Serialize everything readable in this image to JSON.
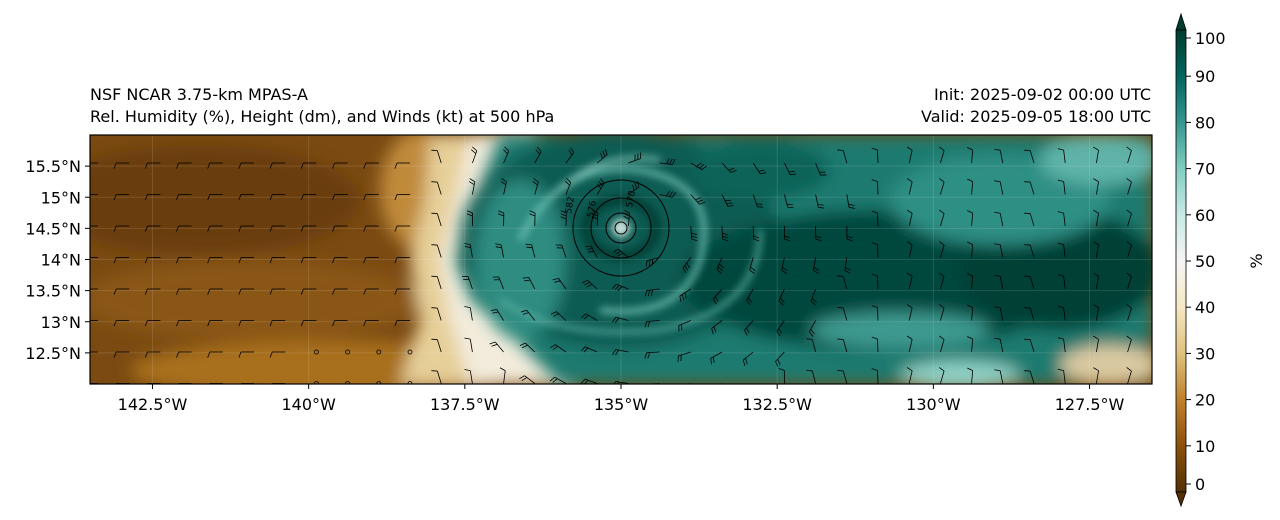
{
  "title": {
    "left_line1": "NSF NCAR 3.75-km MPAS-A",
    "left_line2": "Rel. Humidity (%), Height (dm), and Winds (kt) at 500 hPa",
    "right_line1": "Init: 2025-09-02 00:00 UTC",
    "right_line2": "Valid: 2025-09-05 18:00 UTC"
  },
  "map": {
    "lat_ticks": [
      "15.5°N",
      "15°N",
      "14.5°N",
      "14°N",
      "13.5°N",
      "13°N",
      "12.5°N"
    ],
    "lon_ticks": [
      "142.5°W",
      "140°W",
      "137.5°W",
      "135°W",
      "132.5°W",
      "130°W",
      "127.5°W"
    ],
    "lat_values": [
      15.5,
      15.0,
      14.5,
      14.0,
      13.5,
      13.0,
      12.5
    ],
    "lon_values": [
      -142.5,
      -140.0,
      -137.5,
      -135.0,
      -132.5,
      -130.0,
      -127.5
    ],
    "lat_range": [
      12.0,
      16.0
    ],
    "lon_range": [
      -143.5,
      -126.5
    ],
    "storm_center": {
      "lon": -134.5,
      "lat": 14.5
    },
    "contour_labels": [
      "582",
      "576",
      "570"
    ]
  },
  "colorbar": {
    "label": "%",
    "ticks": [
      "100",
      "90",
      "80",
      "70",
      "60",
      "50",
      "40",
      "30",
      "20",
      "10",
      "0"
    ],
    "range": [
      0,
      100
    ],
    "colors": [
      "#543005",
      "#8c510a",
      "#bf812d",
      "#dfc27d",
      "#f6e8c3",
      "#f5f5f5",
      "#c7eae5",
      "#80cdc1",
      "#35978f",
      "#01665e",
      "#003c30"
    ]
  }
}
